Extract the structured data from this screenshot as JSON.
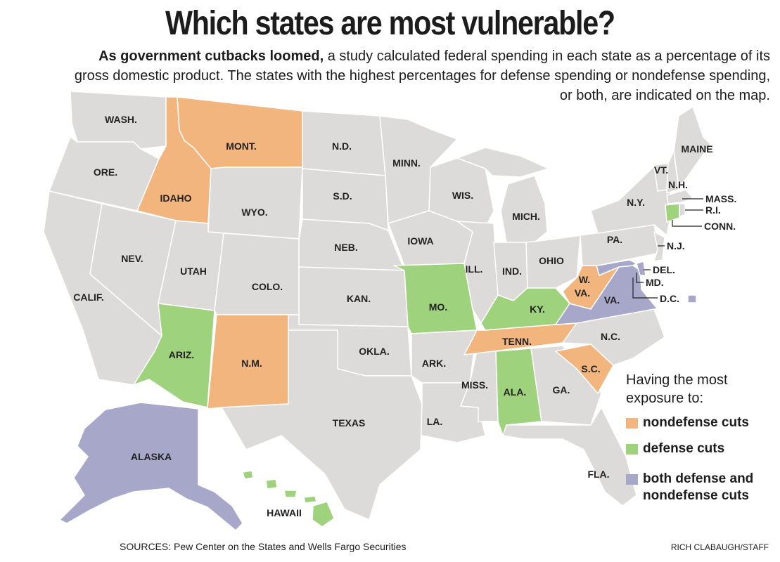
{
  "title": "Which states are most vulnerable?",
  "intro": {
    "lead": "As government cutbacks loomed,",
    "body": " a study calculated federal spending in each state as a percentage of its gross domestic product. The states with the highest percentages for defense spending or nondefense spending, or both, are indicated on the map."
  },
  "colors": {
    "base": "#dcdbd9",
    "nondefense": "#f3b57e",
    "defense": "#9ed27c",
    "both": "#a7a8c9",
    "border": "#ffffff"
  },
  "states": {
    "wash": "WASH.",
    "ore": "ORE.",
    "calif": "CALIF.",
    "nev": "NEV.",
    "idaho": "IDAHO",
    "mont": "MONT.",
    "wyo": "WYO.",
    "utah": "UTAH",
    "colo": "COLO.",
    "ariz": "ARIZ.",
    "nm": "N.M.",
    "nd": "N.D.",
    "sd": "S.D.",
    "neb": "NEB.",
    "kan": "KAN.",
    "okla": "OKLA.",
    "texas": "TEXAS",
    "minn": "MINN.",
    "iowa": "IOWA",
    "mo": "MO.",
    "ark": "ARK.",
    "la": "LA.",
    "wis": "WIS.",
    "ill": "ILL.",
    "miss": "MISS.",
    "mich": "MICH.",
    "ind": "IND.",
    "ohio": "OHIO",
    "ky": "KY.",
    "tenn": "TENN.",
    "ala": "ALA.",
    "ga": "GA.",
    "fla": "FLA.",
    "sc": "S.C.",
    "nc": "N.C.",
    "va": "VA.",
    "wva_1": "W.",
    "wva_2": "VA.",
    "pa": "PA.",
    "ny": "N.Y.",
    "vt": "VT.",
    "nh": "N.H.",
    "maine": "MAINE",
    "mass": "MASS.",
    "ri": "R.I.",
    "conn": "CONN.",
    "nj": "N.J.",
    "del": "DEL.",
    "md": "MD.",
    "dc": "D.C.",
    "alaska": "ALASKA",
    "hawaii": "HAWAII"
  },
  "legend": {
    "title": "Having the most exposure to:",
    "items": [
      {
        "key": "nondefense",
        "label": "nondefense cuts"
      },
      {
        "key": "defense",
        "label": "defense cuts"
      },
      {
        "key": "both",
        "label": "both defense and nondefense cuts"
      }
    ]
  },
  "sources": "SOURCES: Pew Center on the States and Wells Fargo Securities",
  "credit": "RICH CLABAUGH/STAFF"
}
